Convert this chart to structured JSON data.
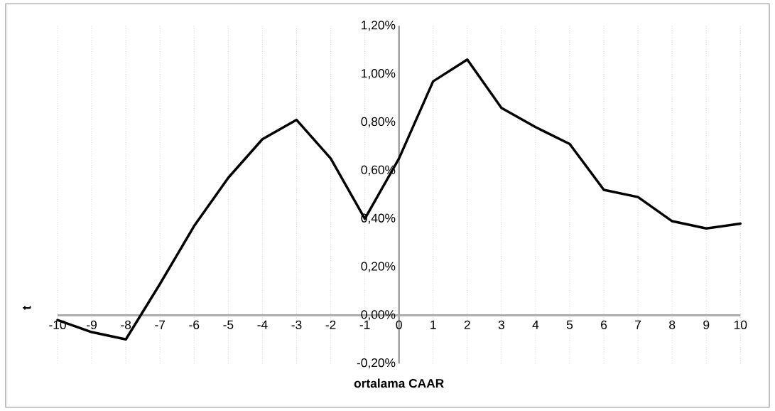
{
  "chart_data": {
    "type": "line",
    "xlabel": "ortalama CAAR",
    "ylabel": "t",
    "x": [
      -10,
      -9,
      -8,
      -7,
      -6,
      -5,
      -4,
      -3,
      -2,
      -1,
      0,
      1,
      2,
      3,
      4,
      5,
      6,
      7,
      8,
      9,
      10
    ],
    "series": [
      {
        "color": "#000000",
        "values": [
          -0.02,
          -0.07,
          -0.1,
          0.13,
          0.37,
          0.57,
          0.73,
          0.81,
          0.65,
          0.4,
          0.65,
          0.97,
          1.06,
          0.86,
          0.78,
          0.71,
          0.52,
          0.49,
          0.39,
          0.36,
          0.38
        ]
      }
    ],
    "xlim": [
      -10,
      10
    ],
    "xticks": [
      -10,
      -9,
      -8,
      -7,
      -6,
      -5,
      -4,
      -3,
      -2,
      -1,
      0,
      1,
      2,
      3,
      4,
      5,
      6,
      7,
      8,
      9,
      10
    ],
    "ylim": [
      -0.2,
      1.2
    ],
    "yticks": [
      {
        "value": -0.2,
        "label": "-0,20%"
      },
      {
        "value": 0,
        "label": "0,00%"
      },
      {
        "value": 0.2,
        "label": "0,20%"
      },
      {
        "value": 0.4,
        "label": "0,40%"
      },
      {
        "value": 0.6,
        "label": "0,60%"
      },
      {
        "value": 0.8,
        "label": "0,80%"
      },
      {
        "value": 1.0,
        "label": "1,00%"
      },
      {
        "value": 1.2,
        "label": "1,20%"
      }
    ],
    "grid": "x",
    "marker": "none",
    "line_style": "solid"
  }
}
